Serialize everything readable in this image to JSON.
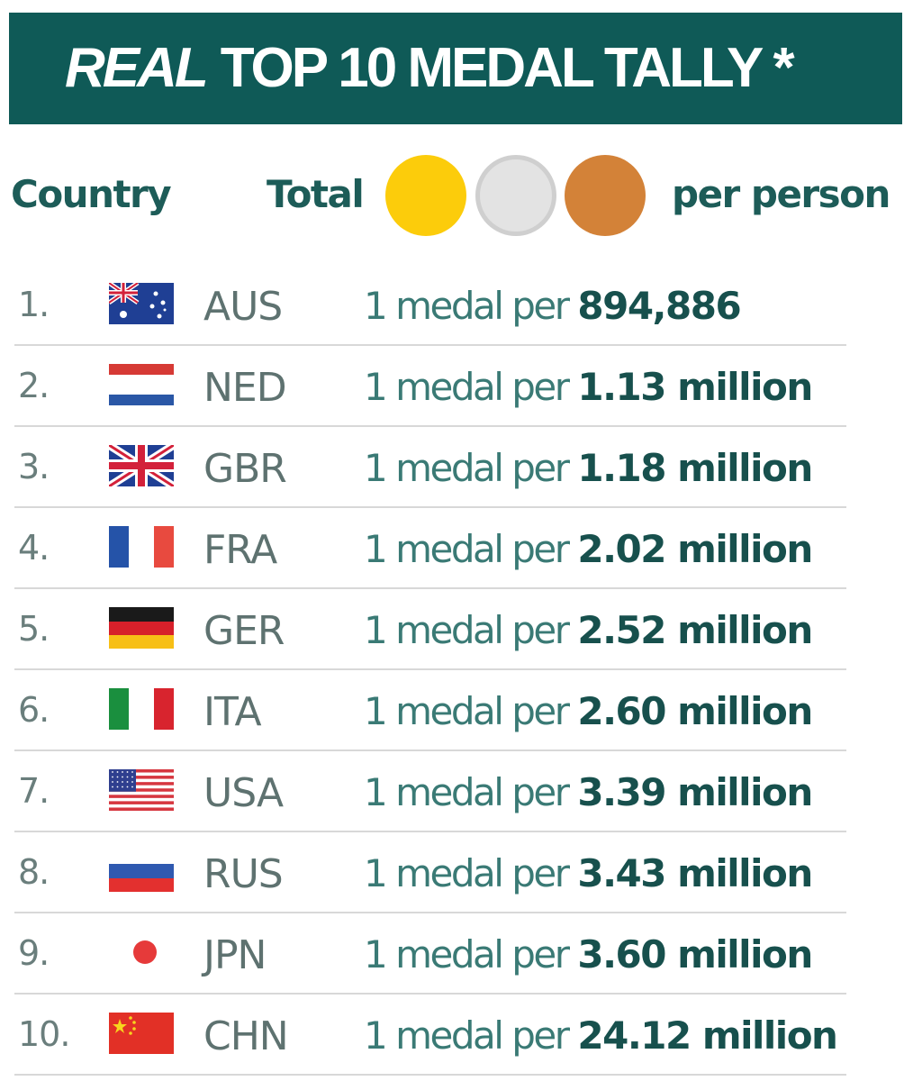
{
  "title": {
    "emphasis": "REAL",
    "rest": "TOP 10 MEDAL TALLY *"
  },
  "header": {
    "country": "Country",
    "total": "Total",
    "per_person": "per person"
  },
  "colors": {
    "banner": "#0f5a57",
    "gold": "#fccc0b",
    "silver": "#e3e3e3",
    "silver_border": "#cfcfcf",
    "bronze": "#d38238",
    "accent_text": "#1d5c58"
  },
  "icons": [
    "gold-medal-icon",
    "silver-medal-icon",
    "bronze-medal-icon"
  ],
  "chart_data": {
    "type": "table",
    "title": "REAL TOP 10 MEDAL TALLY *",
    "columns": [
      "Country",
      "Total",
      "per person"
    ],
    "rows": [
      {
        "rank": "1.",
        "flag": "aus-flag-icon",
        "code": "AUS",
        "prefix": "1 medal per",
        "value": "894,886"
      },
      {
        "rank": "2.",
        "flag": "ned-flag-icon",
        "code": "NED",
        "prefix": "1 medal per",
        "value": "1.13 million"
      },
      {
        "rank": "3.",
        "flag": "gbr-flag-icon",
        "code": "GBR",
        "prefix": "1 medal per",
        "value": "1.18 million"
      },
      {
        "rank": "4.",
        "flag": "fra-flag-icon",
        "code": "FRA",
        "prefix": "1 medal per",
        "value": "2.02 million"
      },
      {
        "rank": "5.",
        "flag": "ger-flag-icon",
        "code": "GER",
        "prefix": "1 medal per",
        "value": "2.52 million"
      },
      {
        "rank": "6.",
        "flag": "ita-flag-icon",
        "code": "ITA",
        "prefix": "1 medal per",
        "value": "2.60 million"
      },
      {
        "rank": "7.",
        "flag": "usa-flag-icon",
        "code": "USA",
        "prefix": "1 medal per",
        "value": "3.39 million"
      },
      {
        "rank": "8.",
        "flag": "rus-flag-icon",
        "code": "RUS",
        "prefix": "1 medal per",
        "value": "3.43 million"
      },
      {
        "rank": "9.",
        "flag": "jpn-flag-icon",
        "code": "JPN",
        "prefix": "1 medal per",
        "value": "3.60 million"
      },
      {
        "rank": "10.",
        "flag": "chn-flag-icon",
        "code": "CHN",
        "prefix": "1 medal per",
        "value": "24.12 million"
      }
    ]
  }
}
